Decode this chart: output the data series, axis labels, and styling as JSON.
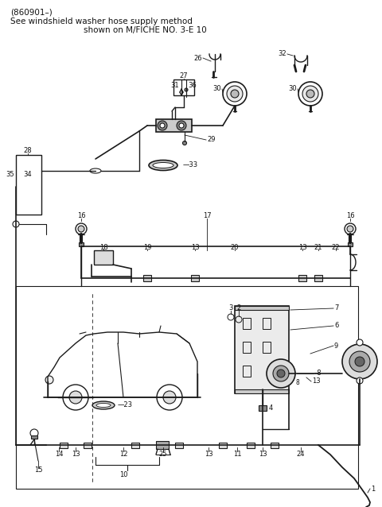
{
  "title_line1": "(860901–)",
  "title_line2": "See windshield washer hose supply method",
  "title_line3": "shown on M/FICHE NO. 3-E 10",
  "bg_color": "#ffffff",
  "line_color": "#1a1a1a",
  "text_color": "#111111",
  "fig_width": 4.8,
  "fig_height": 6.38,
  "dpi": 100
}
